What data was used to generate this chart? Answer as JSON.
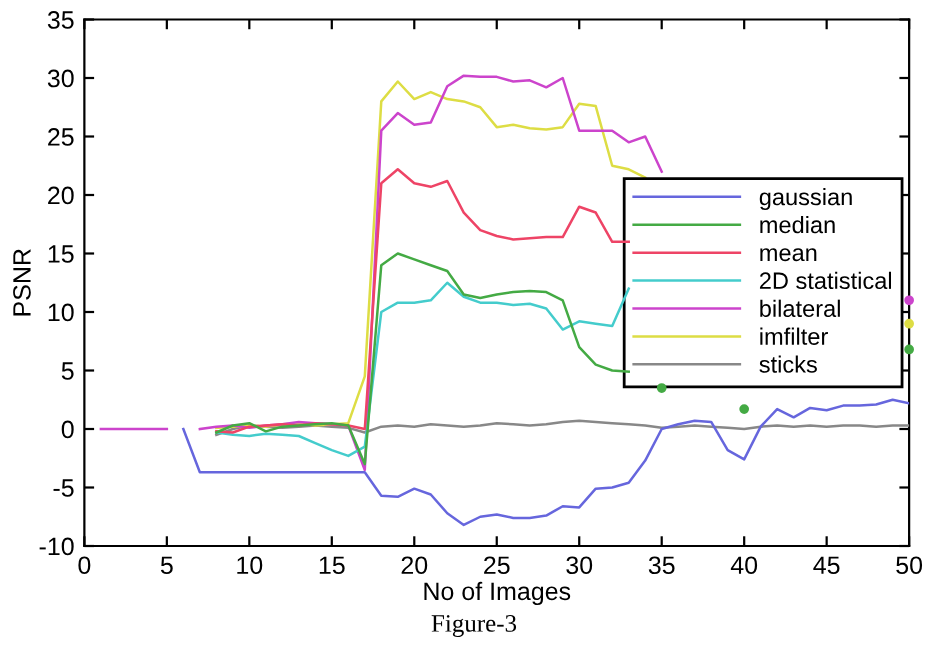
{
  "chart_data": {
    "type": "line",
    "xlabel": "No of Images",
    "ylabel": "PSNR",
    "annotations": [
      "Figure-3"
    ],
    "x": [
      1,
      2,
      3,
      4,
      5,
      6,
      7,
      8,
      9,
      10,
      11,
      12,
      13,
      14,
      15,
      16,
      17,
      18,
      19,
      20,
      21,
      22,
      23,
      24,
      25,
      26,
      27,
      28,
      29,
      30,
      31,
      32,
      33,
      34,
      35,
      36,
      37,
      38,
      39,
      40,
      41,
      42,
      43,
      44,
      45,
      46,
      47,
      48,
      49,
      50
    ],
    "xlim": [
      0,
      50
    ],
    "xticks": [
      0,
      5,
      10,
      15,
      20,
      25,
      30,
      35,
      40,
      45,
      50
    ],
    "ylim": [
      -10,
      35
    ],
    "yticks": [
      -10,
      -5,
      0,
      5,
      10,
      15,
      20,
      25,
      30,
      35
    ],
    "grid": false,
    "legend": "right",
    "marker": "none",
    "line_style": "solid",
    "series": [
      {
        "name": "gaussian",
        "color": "#6666dd",
        "values": [
          null,
          null,
          null,
          null,
          null,
          0,
          -3.7,
          -3.7,
          -3.7,
          -3.7,
          -3.7,
          -3.7,
          -3.7,
          -3.7,
          -3.7,
          -3.7,
          -3.7,
          -5.7,
          -5.8,
          -5.1,
          -5.6,
          -7.2,
          -8.2,
          -7.5,
          -7.3,
          -7.6,
          -7.6,
          -7.4,
          -6.6,
          -6.7,
          -5.1,
          -5.0,
          -4.6,
          -2.7,
          0.0,
          0.4,
          0.7,
          0.6,
          -1.8,
          -2.6,
          0.2,
          1.7,
          1.0,
          1.8,
          1.6,
          2.0,
          2.0,
          2.1,
          2.5,
          2.2
        ]
      },
      {
        "name": "median",
        "color": "#44aa44",
        "values": [
          null,
          null,
          null,
          null,
          null,
          null,
          null,
          -0.3,
          0.3,
          0.5,
          -0.2,
          0.2,
          0.3,
          0.4,
          0.5,
          0.3,
          -3.0,
          14,
          15,
          14.5,
          14,
          13.5,
          11.5,
          11.2,
          11.5,
          11.7,
          11.8,
          11.7,
          11.0,
          7.0,
          5.5,
          5.0,
          4.9,
          null,
          3.5,
          null,
          null,
          null,
          null,
          1.7,
          null,
          null,
          null,
          null,
          null,
          null,
          null,
          null,
          null,
          6.8
        ]
      },
      {
        "name": "mean",
        "color": "#ee4466",
        "values": [
          null,
          null,
          null,
          null,
          null,
          null,
          null,
          -0.2,
          -0.3,
          0.2,
          0.3,
          0.4,
          0.3,
          0.5,
          0.4,
          0.3,
          0.0,
          21,
          22.2,
          21,
          20.7,
          21.2,
          18.5,
          17,
          16.5,
          16.2,
          16.3,
          16.4,
          16.4,
          19,
          18.5,
          16,
          16,
          null,
          null,
          null,
          null,
          null,
          null,
          null,
          null,
          null,
          null,
          null,
          null,
          null,
          null,
          null,
          null,
          null
        ]
      },
      {
        "name": "2D statistical",
        "color": "#44cccc",
        "values": [
          null,
          null,
          null,
          null,
          null,
          null,
          null,
          -0.3,
          -0.5,
          -0.6,
          -0.4,
          -0.5,
          -0.6,
          -1.2,
          -1.8,
          -2.3,
          -1.5,
          10,
          10.8,
          10.8,
          11,
          12.5,
          11.3,
          10.8,
          10.8,
          10.6,
          10.7,
          10.3,
          8.5,
          9.2,
          9.0,
          8.8,
          12,
          null,
          null,
          null,
          null,
          null,
          null,
          null,
          null,
          null,
          null,
          null,
          null,
          null,
          null,
          null,
          null,
          null
        ]
      },
      {
        "name": "bilateral",
        "color": "#cc44cc",
        "values": [
          0,
          0,
          0,
          0,
          0,
          null,
          0,
          0.2,
          0.3,
          0.1,
          0.3,
          0.4,
          0.6,
          0.5,
          0.4,
          0.3,
          -3.5,
          25.5,
          27,
          26,
          26.2,
          29.3,
          30.2,
          30.1,
          30.1,
          29.7,
          29.8,
          29.2,
          30,
          25.5,
          25.5,
          25.5,
          24.5,
          25,
          22,
          null,
          null,
          null,
          null,
          null,
          null,
          null,
          null,
          null,
          null,
          null,
          null,
          null,
          null,
          11
        ]
      },
      {
        "name": "imfilter",
        "color": "#dddd44",
        "values": [
          null,
          null,
          null,
          null,
          null,
          null,
          null,
          0.1,
          0.2,
          0.3,
          0.2,
          0.4,
          0.5,
          0.3,
          0.4,
          0.5,
          4.5,
          28,
          29.7,
          28.2,
          28.8,
          28.2,
          28,
          27.5,
          25.8,
          26,
          25.7,
          25.6,
          25.8,
          27.8,
          27.6,
          22.5,
          22.2,
          21.5,
          null,
          null,
          null,
          null,
          null,
          null,
          null,
          null,
          null,
          null,
          null,
          null,
          null,
          null,
          null,
          9
        ]
      },
      {
        "name": "sticks",
        "color": "#888888",
        "values": [
          null,
          null,
          null,
          null,
          null,
          null,
          null,
          -0.5,
          0,
          0.3,
          0.2,
          0.1,
          0.2,
          0.3,
          0.2,
          0.1,
          -0.3,
          0.2,
          0.3,
          0.2,
          0.4,
          0.3,
          0.2,
          0.3,
          0.5,
          0.4,
          0.3,
          0.4,
          0.6,
          0.7,
          0.6,
          0.5,
          0.4,
          0.3,
          0.1,
          0.2,
          0.3,
          0.2,
          0.1,
          0.0,
          0.2,
          0.3,
          0.2,
          0.3,
          0.2,
          0.3,
          0.3,
          0.2,
          0.3,
          0.3
        ]
      }
    ]
  }
}
